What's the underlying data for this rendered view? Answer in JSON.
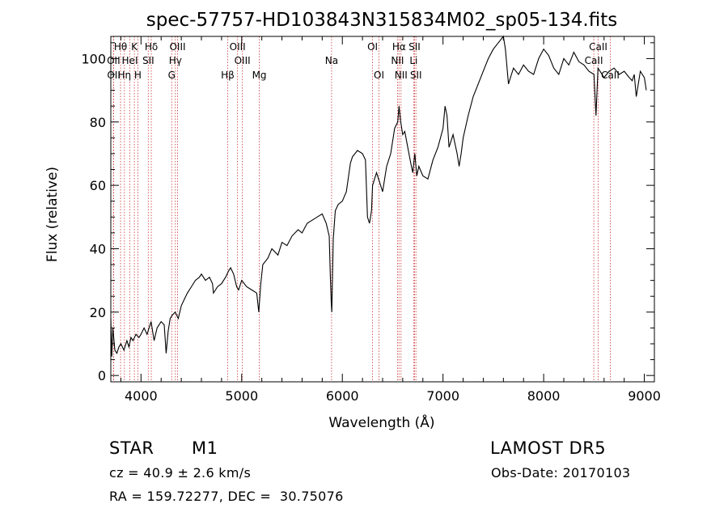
{
  "chart_data": {
    "type": "line",
    "title": "spec-57757-HD103843N315834M02_sp05-134.fits",
    "xlabel": "Wavelength (Å)",
    "ylabel": "Flux (relative)",
    "xlim": [
      3700,
      9100
    ],
    "ylim": [
      -2,
      107
    ],
    "x_ticks": [
      4000,
      5000,
      6000,
      7000,
      8000,
      9000
    ],
    "y_ticks": [
      0,
      20,
      40,
      60,
      80,
      100
    ],
    "grid": false,
    "series": [
      {
        "x": [
          3700,
          3710,
          3720,
          3740,
          3760,
          3780,
          3800,
          3830,
          3860,
          3880,
          3900,
          3920,
          3950,
          3980,
          4000,
          4030,
          4060,
          4100,
          4130,
          4160,
          4200,
          4230,
          4250,
          4270,
          4290,
          4310,
          4340,
          4370,
          4400,
          4430,
          4460,
          4500,
          4540,
          4580,
          4600,
          4640,
          4680,
          4710,
          4720,
          4760,
          4800,
          4840,
          4870,
          4890,
          4920,
          4950,
          4970,
          5000,
          5050,
          5100,
          5150,
          5170,
          5190,
          5210,
          5260,
          5300,
          5360,
          5400,
          5450,
          5500,
          5560,
          5600,
          5650,
          5700,
          5750,
          5800,
          5840,
          5870,
          5880,
          5890,
          5895,
          5900,
          5910,
          5930,
          5960,
          6000,
          6040,
          6080,
          6100,
          6150,
          6200,
          6230,
          6250,
          6270,
          6290,
          6300,
          6320,
          6340,
          6360,
          6380,
          6400,
          6440,
          6480,
          6520,
          6550,
          6563,
          6580,
          6600,
          6620,
          6650,
          6680,
          6700,
          6720,
          6740,
          6760,
          6800,
          6850,
          6900,
          6950,
          7000,
          7020,
          7040,
          7060,
          7100,
          7120,
          7140,
          7160,
          7180,
          7200,
          7250,
          7300,
          7350,
          7400,
          7450,
          7500,
          7550,
          7600,
          7620,
          7650,
          7680,
          7700,
          7750,
          7800,
          7850,
          7900,
          7950,
          8000,
          8050,
          8100,
          8150,
          8200,
          8250,
          8300,
          8350,
          8400,
          8450,
          8500,
          8520,
          8540,
          8560,
          8600,
          8650,
          8700,
          8750,
          8800,
          8850,
          8880,
          8900,
          8920,
          8940,
          8960,
          8980,
          9000,
          9010,
          9020
        ],
        "y": [
          18,
          6,
          15,
          8,
          7,
          9,
          10,
          8,
          11,
          9,
          12,
          11,
          13,
          12,
          13,
          15,
          13,
          17,
          11,
          15,
          17,
          16,
          7,
          14,
          18,
          19,
          20,
          18,
          22,
          24,
          26,
          28,
          30,
          31,
          32,
          30,
          31,
          29,
          26,
          28,
          29,
          31,
          33,
          34,
          32,
          28,
          27,
          30,
          28,
          27,
          26,
          20,
          29,
          35,
          37,
          40,
          38,
          42,
          41,
          44,
          46,
          45,
          48,
          49,
          50,
          51,
          48,
          44,
          32,
          23,
          20,
          28,
          43,
          52,
          54,
          55,
          58,
          67,
          69,
          71,
          70,
          68,
          50,
          48,
          52,
          60,
          62,
          64,
          62,
          60,
          58,
          66,
          70,
          78,
          80,
          85,
          80,
          76,
          77,
          72,
          67,
          64,
          70,
          63,
          66,
          63,
          62,
          68,
          72,
          78,
          85,
          82,
          72,
          76,
          73,
          70,
          66,
          70,
          75,
          82,
          88,
          92,
          96,
          100,
          103,
          105,
          107,
          103,
          92,
          95,
          97,
          95,
          98,
          96,
          95,
          100,
          103,
          101,
          97,
          95,
          100,
          98,
          102,
          99,
          98,
          96,
          95,
          82,
          97,
          96,
          94,
          96,
          97,
          95,
          96,
          94,
          93,
          95,
          88,
          92,
          96,
          95,
          94,
          92,
          90
        ]
      }
    ],
    "spectral_lines": [
      {
        "label": "Hθ",
        "wavelength": 3797,
        "row": 0
      },
      {
        "label": "K",
        "wavelength": 3934,
        "row": 0
      },
      {
        "label": "Hδ",
        "wavelength": 4102,
        "row": 0
      },
      {
        "label": "OIII",
        "wavelength": 4363,
        "row": 0
      },
      {
        "label": "OIII",
        "wavelength": 4959,
        "row": 0
      },
      {
        "label": "OI",
        "wavelength": 6300,
        "row": 0
      },
      {
        "label": "Hα",
        "wavelength": 6563,
        "row": 0
      },
      {
        "label": "SII",
        "wavelength": 6717,
        "row": 0
      },
      {
        "label": "CaII",
        "wavelength": 8542,
        "row": 0
      },
      {
        "label": "OII",
        "wavelength": 3727,
        "row": 1
      },
      {
        "label": "HeI",
        "wavelength": 3889,
        "row": 1
      },
      {
        "label": "SII",
        "wavelength": 4072,
        "row": 1
      },
      {
        "label": "Hγ",
        "wavelength": 4341,
        "row": 1
      },
      {
        "label": "OIII",
        "wavelength": 5007,
        "row": 1
      },
      {
        "label": "Na",
        "wavelength": 5893,
        "row": 1
      },
      {
        "label": "NII",
        "wavelength": 6548,
        "row": 1
      },
      {
        "label": "Li",
        "wavelength": 6708,
        "row": 1
      },
      {
        "label": "CaII",
        "wavelength": 8498,
        "row": 1
      },
      {
        "label": "OII",
        "wavelength": 3729,
        "row": 2
      },
      {
        "label": "Hη",
        "wavelength": 3835,
        "row": 2
      },
      {
        "label": "H",
        "wavelength": 3968,
        "row": 2
      },
      {
        "label": "G",
        "wavelength": 4305,
        "row": 2
      },
      {
        "label": "Hβ",
        "wavelength": 4861,
        "row": 2
      },
      {
        "label": "Mg",
        "wavelength": 5175,
        "row": 2
      },
      {
        "label": "OI",
        "wavelength": 6364,
        "row": 2
      },
      {
        "label": "NII",
        "wavelength": 6583,
        "row": 2
      },
      {
        "label": "SII",
        "wavelength": 6731,
        "row": 2
      },
      {
        "label": "CaII",
        "wavelength": 8662,
        "row": 2
      }
    ],
    "colors": {
      "spectrum": "#000000",
      "line_markers": "#cc3333",
      "axes": "#000000"
    }
  },
  "info": {
    "object_class": "STAR",
    "subclass": "M1",
    "survey": "LAMOST DR5",
    "cz": "cz = 40.9 ± 2.6 km/s",
    "obs_date": "Obs-Date: 20170103",
    "coords": "RA = 159.72277, DEC =  30.75076"
  }
}
